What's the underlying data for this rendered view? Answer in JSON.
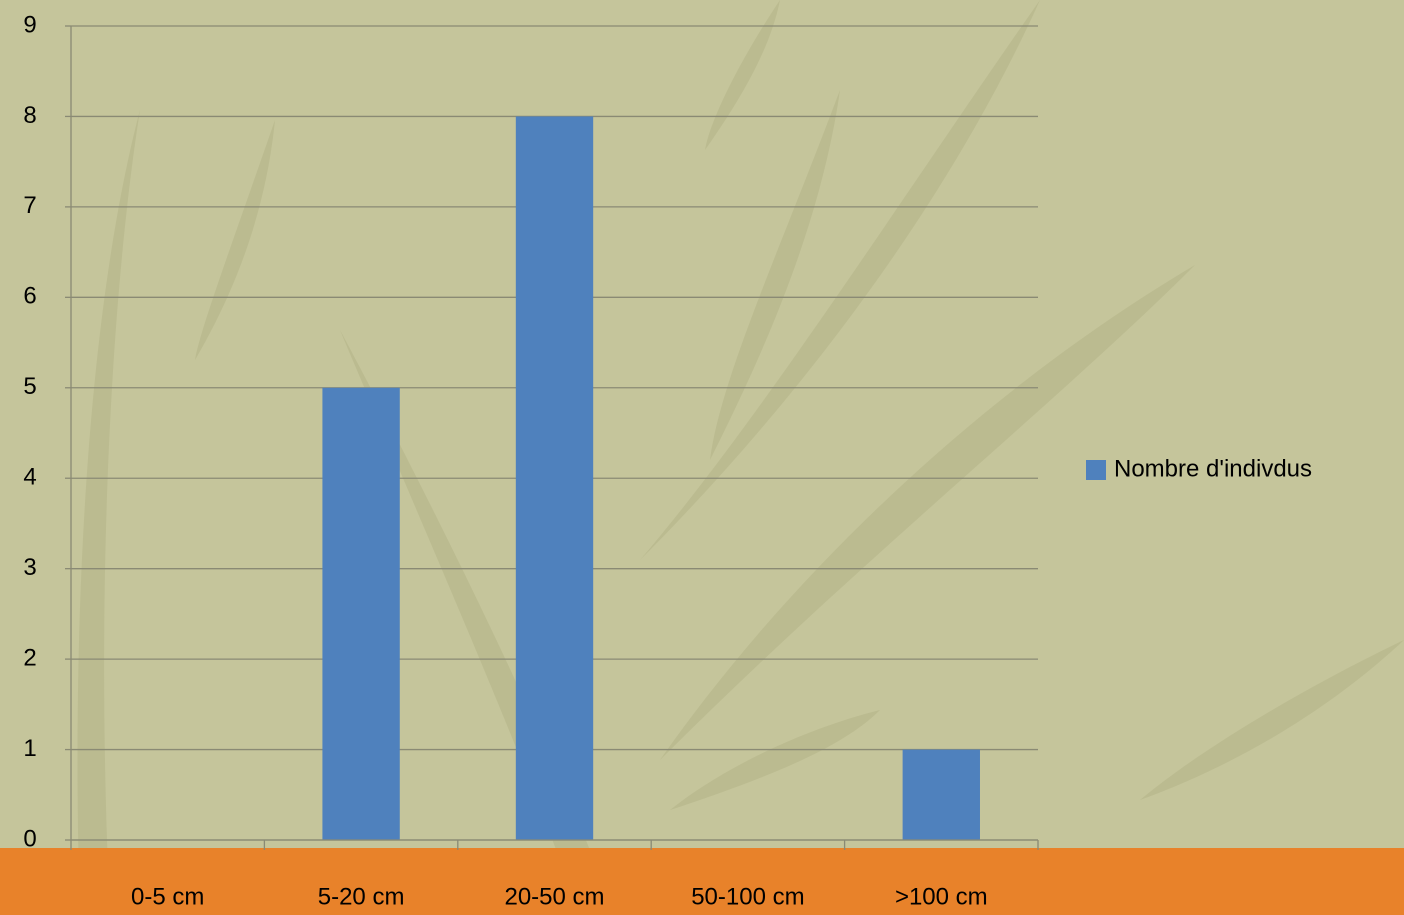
{
  "chart_data": {
    "type": "bar",
    "categories": [
      "0-5 cm",
      "5-20 cm",
      "20-50 cm",
      "50-100 cm",
      ">100 cm"
    ],
    "series": [
      {
        "name": "Nombre d'indivdus",
        "color": "#4f81bd",
        "values": [
          0,
          5,
          8,
          0,
          1
        ]
      }
    ],
    "ylim": [
      0,
      9
    ],
    "yticks": [
      0,
      1,
      2,
      3,
      4,
      5,
      6,
      7,
      8,
      9
    ],
    "grid": true,
    "legend": "right"
  }
}
